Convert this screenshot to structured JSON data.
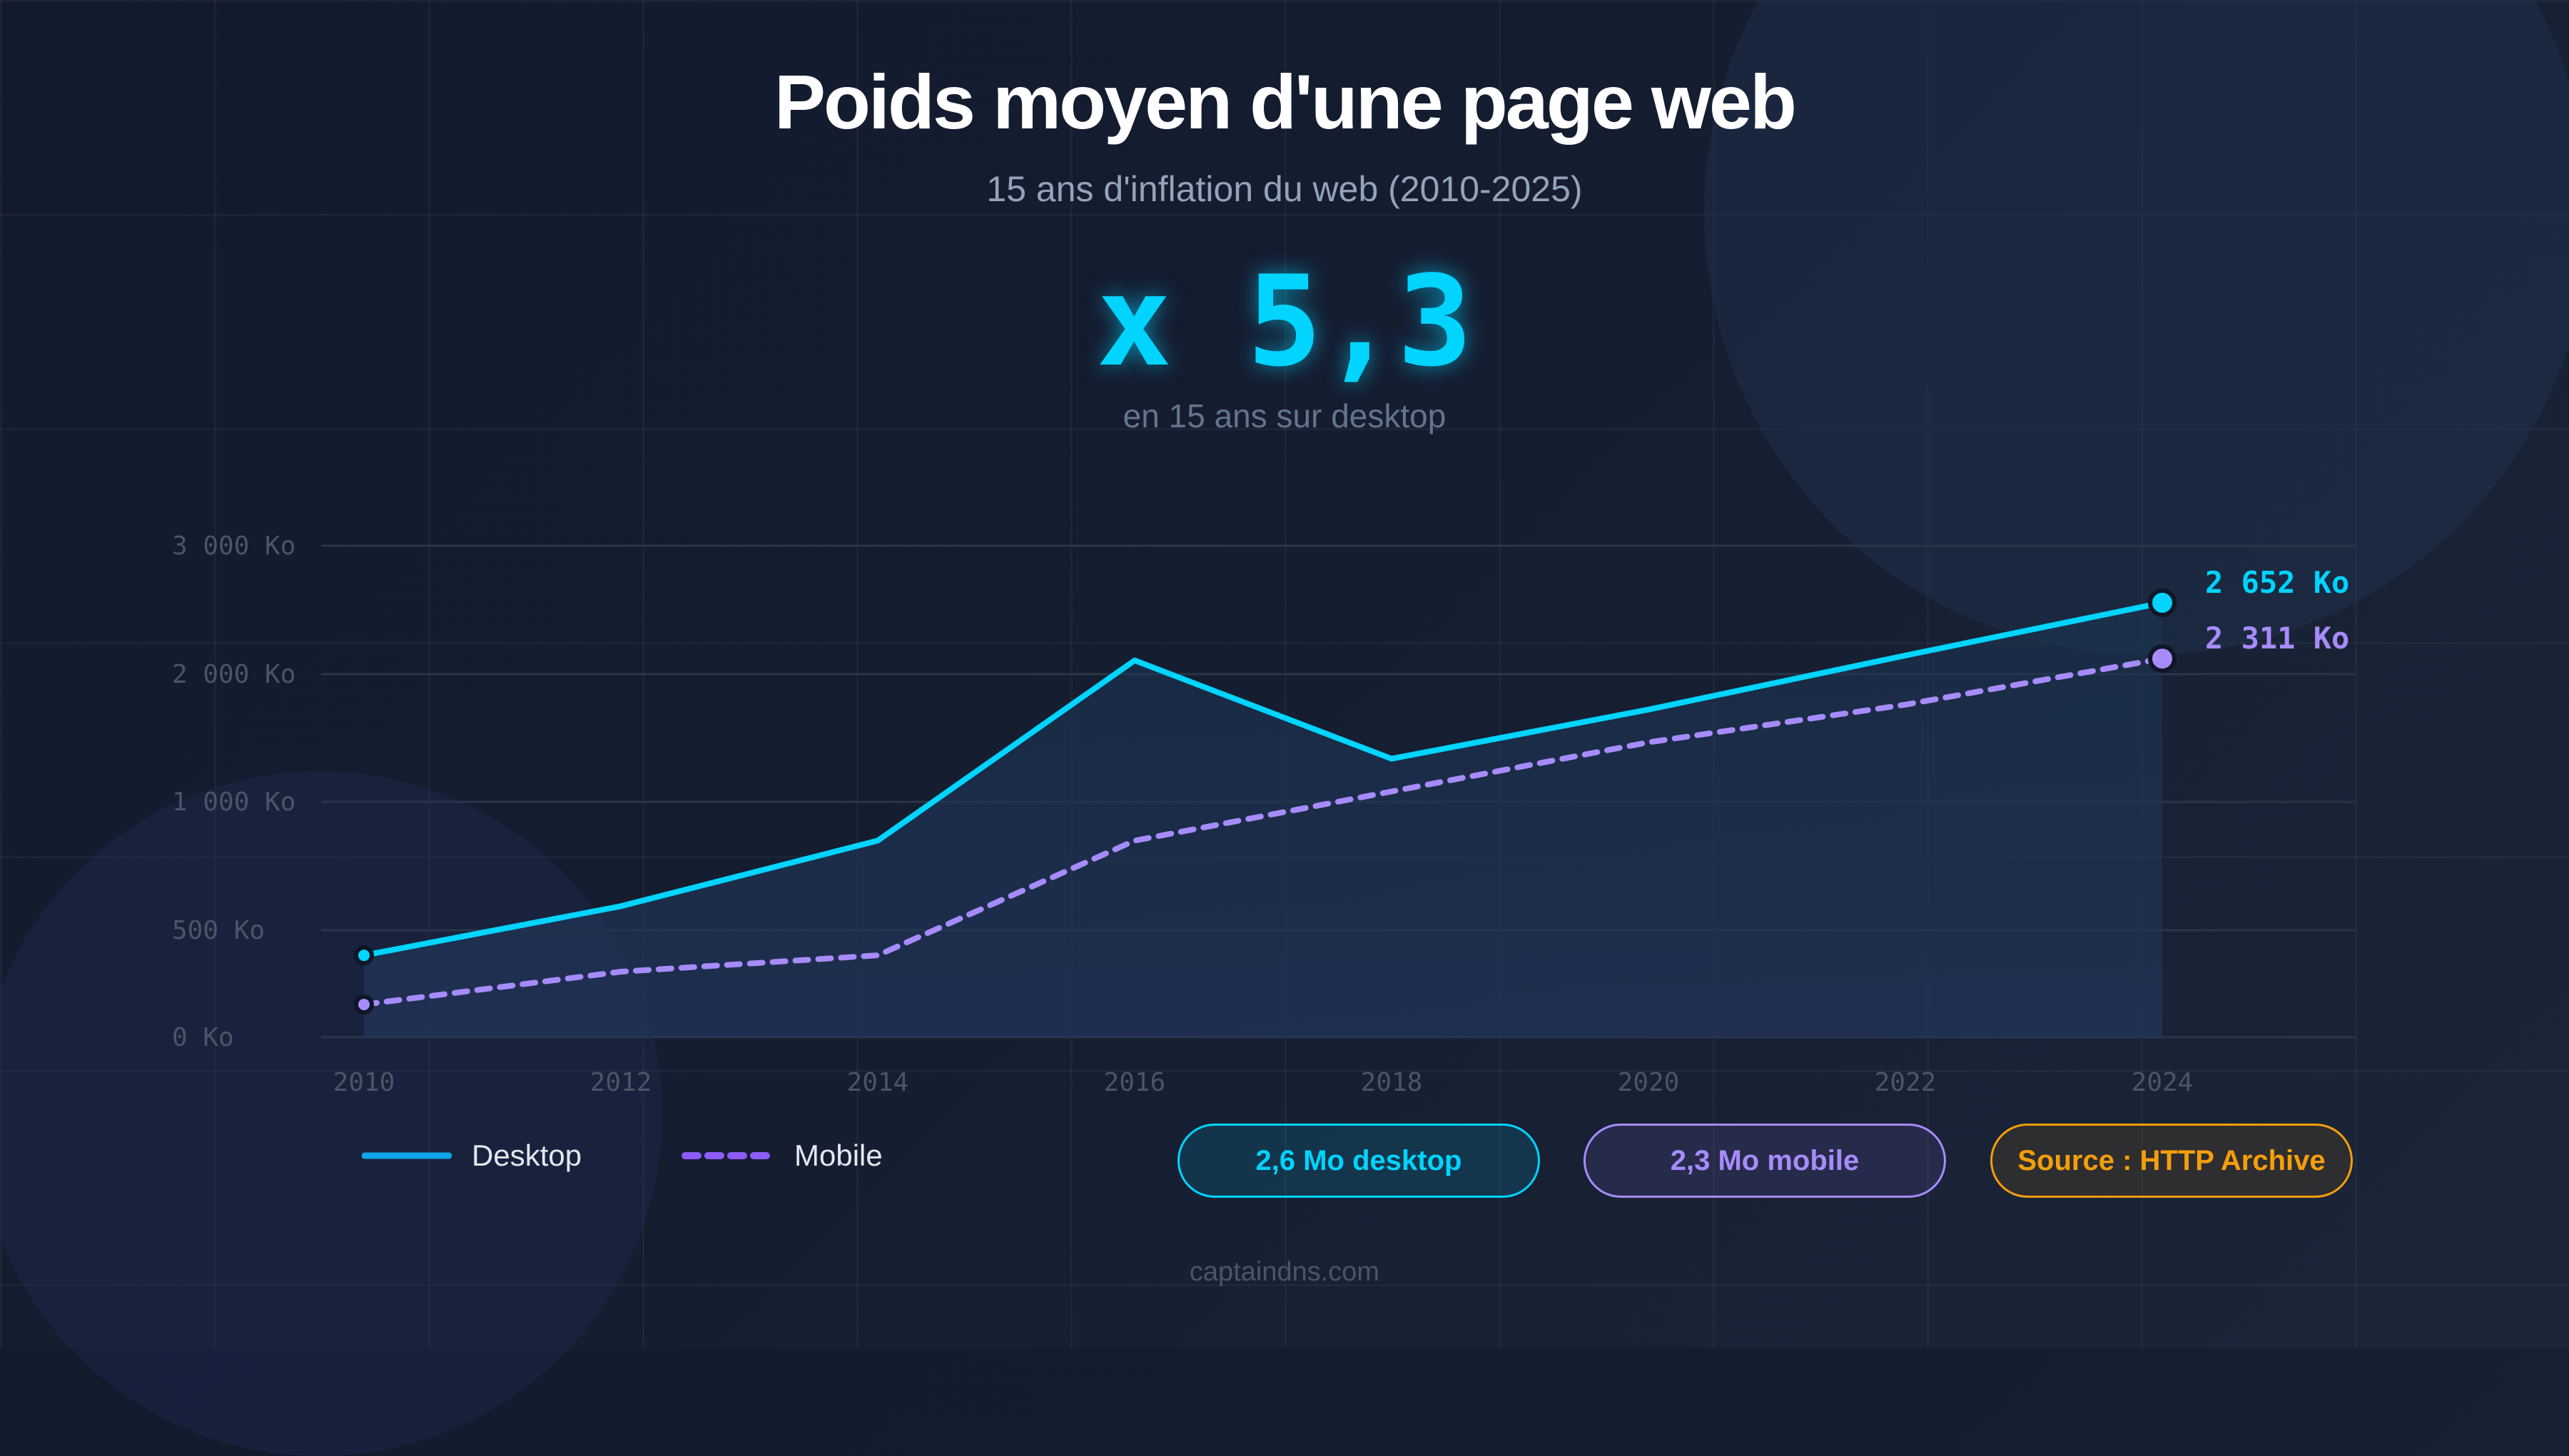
{
  "header": {
    "title": "Poids moyen d'une page web",
    "subtitle": "15 ans d'inflation du web (2010-2025)",
    "highlight_value": "x 5,3",
    "highlight_caption": "en 15 ans sur desktop"
  },
  "chart_data": {
    "type": "line",
    "x": [
      2010,
      2012,
      2014,
      2016,
      2018,
      2020,
      2022,
      2024
    ],
    "x_tick_labels": [
      "2010",
      "2012",
      "2014",
      "2016",
      "2018",
      "2020",
      "2022",
      "2024"
    ],
    "y_tick_labels": [
      "3 000 Ko",
      "2 000 Ko",
      "1 000 Ko",
      "500 Ko",
      "0 Ko"
    ],
    "ylim": [
      0,
      3000
    ],
    "grid": true,
    "series": [
      {
        "name": "Desktop",
        "values": [
          500,
          800,
          1200,
          2300,
          1700,
          2000,
          2330,
          2652
        ],
        "color": "#00d4ff",
        "style": "solid",
        "area_fill": true,
        "end_label": "2 652 Ko"
      },
      {
        "name": "Mobile",
        "values": [
          200,
          400,
          500,
          1200,
          1500,
          1800,
          2030,
          2311
        ],
        "color": "#a78bfa",
        "style": "dashed",
        "end_label": "2 311 Ko"
      }
    ],
    "legend_position": "bottom-left"
  },
  "legend": [
    {
      "label": "Desktop",
      "color": "#0ea5e9"
    },
    {
      "label": "Mobile",
      "color": "#8b5cf6"
    }
  ],
  "badges": [
    {
      "label": "2,6 Mo desktop",
      "color": "#00d4ff"
    },
    {
      "label": "2,3 Mo mobile",
      "color": "#a78bfa"
    },
    {
      "label": "Source : HTTP Archive",
      "color": "#f59e0b"
    }
  ],
  "footer": {
    "site": "captaindns.com"
  }
}
